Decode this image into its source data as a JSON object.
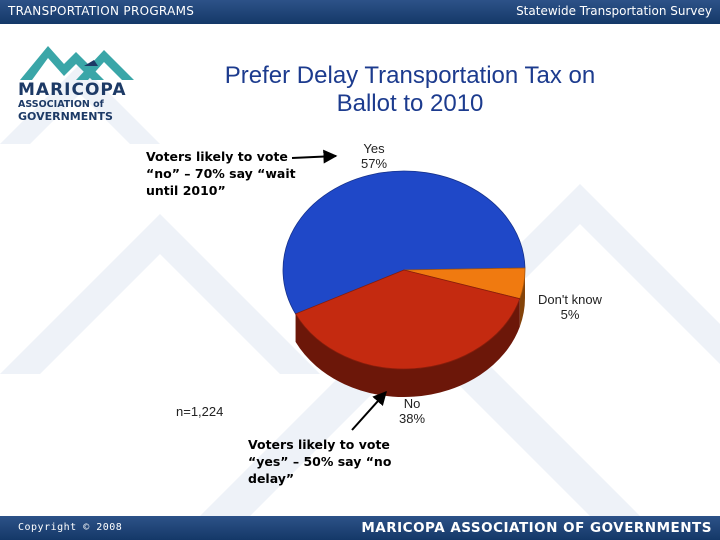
{
  "header": {
    "left": "TRANSPORTATION PROGRAMS",
    "right": "Statewide Transportation Survey"
  },
  "logo": {
    "line1": "MARICOPA",
    "line2": "ASSOCIATION of",
    "line3": "GOVERNMENTS"
  },
  "notes": {
    "no_voters": "Voters likely to vote “no” – 70% say “wait until 2010”",
    "yes_voters": "Voters likely to vote “yes” – 50% say “no delay”"
  },
  "footer": {
    "copyright": "Copyright © 2008",
    "org": "MARICOPA ASSOCIATION OF GOVERNMENTS"
  },
  "colors": {
    "yes": "#1f48c8",
    "no": "#c42a10",
    "dont_know": "#f07a10",
    "bars": "#1f4478",
    "title": "#1c3b8e"
  },
  "chart_data": {
    "type": "pie",
    "title": "Prefer Delay Transportation Tax on Ballot to 2010",
    "sample_size": "n=1,224",
    "slices": [
      {
        "name": "Yes",
        "label": "57%",
        "value": 57
      },
      {
        "name": "Don't know",
        "label": "5%",
        "value": 5
      },
      {
        "name": "No",
        "label": "38%",
        "value": 38
      }
    ]
  }
}
